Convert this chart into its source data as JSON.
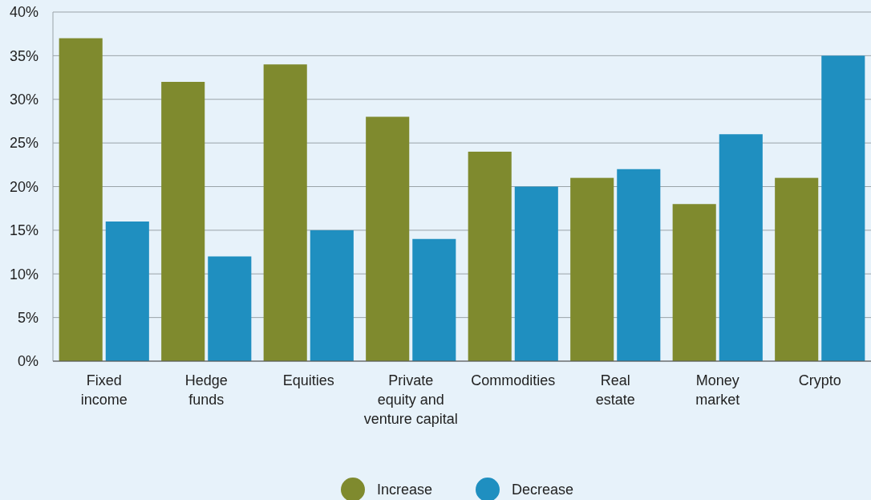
{
  "chart_data": {
    "type": "bar",
    "categories": [
      "Fixed\nincome",
      "Hedge\nfunds",
      "Equities",
      "Private\nequity and\nventure capital",
      "Commodities",
      "Real\nestate",
      "Money\nmarket",
      "Crypto"
    ],
    "series": [
      {
        "name": "Increase",
        "color": "#7f8a2e",
        "values": [
          37,
          32,
          34,
          28,
          24,
          21,
          18,
          21
        ]
      },
      {
        "name": "Decrease",
        "color": "#1f8fc0",
        "values": [
          16,
          12,
          15,
          14,
          20,
          22,
          26,
          35
        ]
      }
    ],
    "ylim": [
      0,
      40
    ],
    "yticks": [
      {
        "value": 0,
        "label": "0%"
      },
      {
        "value": 5,
        "label": "5%"
      },
      {
        "value": 10,
        "label": "10%"
      },
      {
        "value": 15,
        "label": "15%"
      },
      {
        "value": 20,
        "label": "20%"
      },
      {
        "value": 25,
        "label": "25%"
      },
      {
        "value": 30,
        "label": "30%"
      },
      {
        "value": 35,
        "label": "35%"
      },
      {
        "value": 40,
        "label": "40%"
      }
    ],
    "grid": "y",
    "legend": "bottom",
    "marker": "circle"
  }
}
